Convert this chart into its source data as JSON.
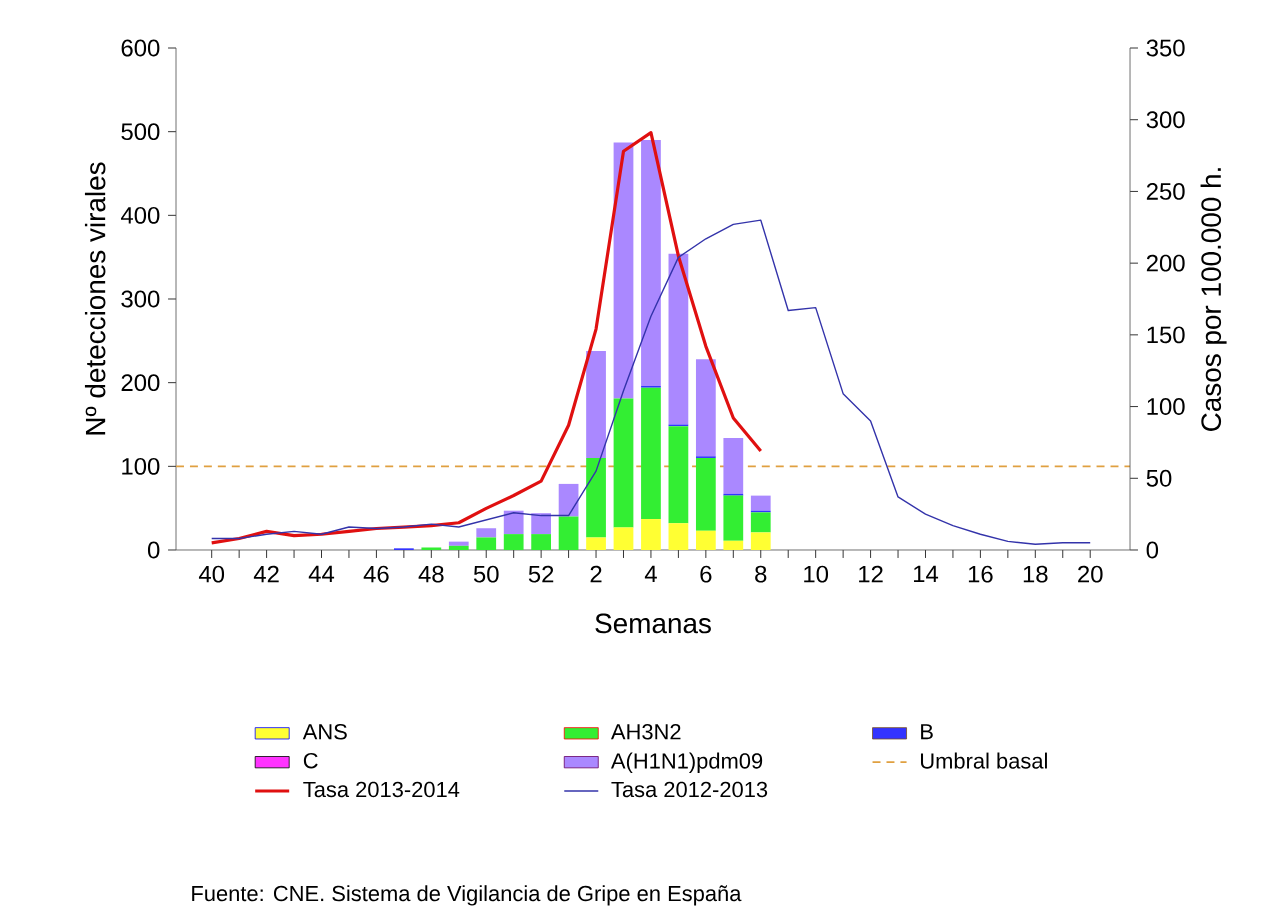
{
  "chart_data": {
    "type": "bar",
    "stacked": true,
    "xlabel": "Semanas",
    "ylabel": "Nº detecciones virales",
    "y2label": "Casos por 100.000 h.",
    "annotations": [
      "Fuente: CNE. Sistema de Vigilancia de Gripe en España"
    ],
    "categories": [
      "40",
      null,
      "42",
      null,
      "44",
      null,
      "46",
      null,
      "48",
      null,
      "50",
      null,
      "52",
      null,
      "2",
      null,
      "4",
      null,
      "6",
      null,
      "8",
      null,
      "10",
      null,
      "12",
      null,
      "14",
      null,
      "16",
      null,
      "18",
      null,
      "20"
    ],
    "ylim": [
      0,
      600
    ],
    "yticks": [
      0,
      100,
      200,
      300,
      400,
      500,
      600
    ],
    "y2lim": [
      0,
      350
    ],
    "y2ticks": [
      0,
      50,
      100,
      150,
      200,
      250,
      300,
      350
    ],
    "legend": "bottom",
    "marker": "none",
    "series": [
      {
        "name": "ANS",
        "type": "bar",
        "color": "#ffff33",
        "values": [
          null,
          null,
          null,
          null,
          null,
          null,
          null,
          0,
          0,
          0,
          0,
          0,
          0,
          0,
          15,
          27,
          37,
          32,
          23,
          11,
          21,
          null,
          null,
          null,
          null,
          null,
          null,
          null,
          null,
          null,
          null,
          null,
          null
        ]
      },
      {
        "name": "AH3N2",
        "type": "bar",
        "color": "#33ee33",
        "values": [
          null,
          null,
          null,
          null,
          null,
          null,
          null,
          0,
          3,
          5,
          15,
          19,
          19,
          40,
          95,
          154,
          157,
          116,
          87,
          54,
          24,
          null,
          null,
          null,
          null,
          null,
          null,
          null,
          null,
          null,
          null,
          null,
          null
        ]
      },
      {
        "name": "B",
        "type": "bar",
        "color": "#3333ff",
        "values": [
          null,
          null,
          null,
          null,
          null,
          null,
          null,
          2,
          0,
          0,
          0,
          0,
          0,
          0,
          0,
          0,
          2,
          2,
          2,
          2,
          2,
          null,
          null,
          null,
          null,
          null,
          null,
          null,
          null,
          null,
          null,
          null,
          null
        ]
      },
      {
        "name": "C",
        "type": "bar",
        "color": "#ff33ff",
        "values": [
          null,
          null,
          null,
          null,
          null,
          null,
          null,
          0,
          0,
          0,
          0,
          0,
          0,
          0,
          0,
          0,
          0,
          0,
          0,
          0,
          0,
          null,
          null,
          null,
          null,
          null,
          null,
          null,
          null,
          null,
          null,
          null,
          null
        ]
      },
      {
        "name": "A(H1N1)pdm09",
        "type": "bar",
        "color": "#aa88ff",
        "values": [
          null,
          null,
          null,
          null,
          null,
          null,
          null,
          0,
          0,
          5,
          11,
          28,
          25,
          39,
          128,
          306,
          294,
          204,
          116,
          67,
          18,
          null,
          null,
          null,
          null,
          null,
          null,
          null,
          null,
          null,
          null,
          null,
          null
        ]
      },
      {
        "name": "Tasa 2013-2014",
        "type": "line",
        "axis": "y2",
        "color": "#e01010",
        "values": [
          5,
          8,
          13,
          10,
          11,
          13,
          15,
          16,
          17,
          19,
          29,
          38,
          48,
          87,
          154,
          278,
          291,
          205,
          142,
          92,
          69,
          null,
          null,
          null,
          null,
          null,
          null,
          null,
          null,
          null,
          null,
          null,
          null
        ]
      },
      {
        "name": "Tasa 2012-2013",
        "type": "line",
        "axis": "y2",
        "color": "#3333aa",
        "values": [
          8,
          8,
          11,
          13,
          11,
          16,
          15,
          16,
          18,
          16,
          21,
          26,
          24,
          24,
          55,
          111,
          163,
          204,
          217,
          227,
          230,
          167,
          169,
          109,
          90,
          37,
          25,
          17,
          11,
          6,
          4,
          5,
          5
        ]
      }
    ],
    "ref_lines": [
      {
        "axis": "y",
        "value": 100,
        "label": "Umbral basal",
        "color": "#e0a040",
        "line_style": "dashed"
      }
    ]
  }
}
